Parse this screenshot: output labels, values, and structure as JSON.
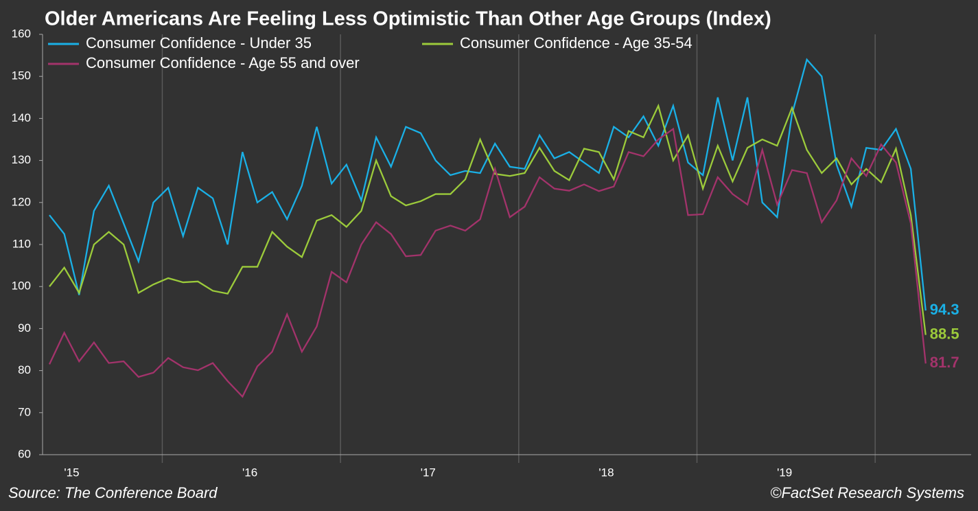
{
  "chart_data": {
    "type": "line",
    "title": "Older Americans Are Feeling Less Optimistic Than Other Age Groups (Index)",
    "source": "Source: The Conference Board",
    "credit": "©FactSet Research Systems",
    "categories": [
      null,
      "'15",
      null,
      null,
      null,
      null,
      null,
      null,
      null,
      null,
      null,
      null,
      null,
      "'16",
      null,
      null,
      null,
      null,
      null,
      null,
      null,
      null,
      null,
      null,
      null,
      "'17",
      null,
      null,
      null,
      null,
      null,
      null,
      null,
      null,
      null,
      null,
      null,
      "'18",
      null,
      null,
      null,
      null,
      null,
      null,
      null,
      null,
      null,
      null,
      null,
      "'19",
      null,
      null,
      null,
      null,
      null,
      null,
      null,
      null,
      null,
      null
    ],
    "ylim": [
      60,
      160
    ],
    "yticks": [
      60,
      70,
      80,
      90,
      100,
      110,
      120,
      130,
      140,
      150,
      160
    ],
    "grid": true,
    "series": [
      {
        "name": "Consumer Confidence - Under 35",
        "color": "#1ab0e6",
        "values": [
          117,
          112.5,
          98,
          118,
          124,
          115,
          106,
          120,
          123.5,
          112,
          123.5,
          121,
          110,
          132,
          120,
          122.5,
          116,
          124,
          138,
          124.5,
          129,
          120.5,
          135.5,
          128.5,
          138,
          136.5,
          130,
          126.5,
          127.5,
          127,
          134,
          128.5,
          128,
          136,
          130.5,
          132,
          129.5,
          127,
          138,
          135.5,
          140.5,
          133.5,
          143,
          129.5,
          126.5,
          145,
          130,
          145,
          120,
          116.5,
          141,
          154,
          150,
          129,
          119,
          133,
          132.5,
          137.5,
          128,
          94.3
        ]
      },
      {
        "name": "Consumer Confidence - Age 35-54",
        "color": "#9ccb3b",
        "values": [
          100,
          104.5,
          98.5,
          110,
          113,
          110,
          98.5,
          100.5,
          102,
          101,
          101.2,
          99,
          98.3,
          104.7,
          104.7,
          113,
          109.5,
          107,
          115.7,
          117,
          114.2,
          118,
          130,
          121.5,
          119.3,
          120.3,
          122,
          122,
          125.5,
          135,
          126.8,
          126.3,
          127,
          133,
          127.5,
          125.3,
          132.8,
          132,
          125.5,
          137,
          135.5,
          143,
          130,
          136,
          123.3,
          133.5,
          125,
          133,
          135,
          133.5,
          142.5,
          132.5,
          127,
          130.5,
          124.3,
          128,
          124.8,
          132.8,
          117,
          88.5
        ]
      },
      {
        "name": "Consumer Confidence - Age 55 and over",
        "color": "#a3336b",
        "values": [
          81.5,
          89,
          82.2,
          86.7,
          81.8,
          82.2,
          78.5,
          79.5,
          83,
          80.8,
          80.1,
          81.8,
          77.5,
          73.8,
          81,
          84.5,
          93.4,
          84.5,
          90.5,
          103.5,
          101,
          110,
          115.3,
          112.5,
          107.2,
          107.5,
          113.3,
          114.5,
          113.3,
          116,
          128,
          116.5,
          119,
          126,
          123.3,
          122.8,
          124.3,
          122.7,
          123.8,
          132,
          131,
          135,
          137.5,
          117,
          117.2,
          126,
          122,
          119.5,
          132.5,
          119.5,
          127.7,
          127,
          115.3,
          120.5,
          130.5,
          126.3,
          133.8,
          129.5,
          115,
          81.7
        ]
      }
    ]
  }
}
